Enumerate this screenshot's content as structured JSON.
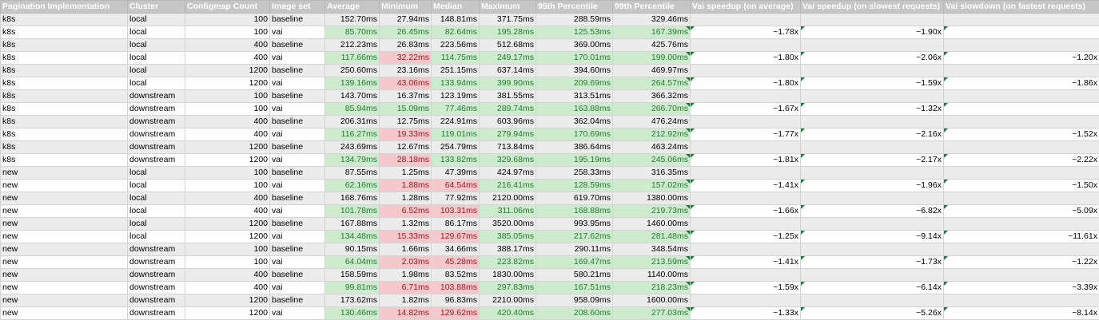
{
  "columns": [
    "Pagination Implementation",
    "Cluster",
    "Configmap Count",
    "Image set",
    "Average",
    "Minimum",
    "Median",
    "Maximum",
    "95th Percentile",
    "99th Percentile",
    "Vai speedup (on average)",
    "Vai speedup (on slowest requests)",
    "Vai slowdown (on fastest requests)"
  ],
  "colors": {
    "header_bg": "#c6c6c6",
    "good_bg": "#cdeccf",
    "good_text": "#267a2c",
    "bad_bg": "#f5c8cc",
    "bad_text": "#a0191f",
    "zebra": "#ececec",
    "flag": "#1e7b34"
  },
  "rows": [
    [
      "k8s",
      "local",
      "100",
      "baseline",
      "152.70ms",
      "27.94ms",
      "148.81ms",
      "371.75ms",
      "288.59ms",
      "329.46ms",
      "",
      "",
      ""
    ],
    [
      "k8s",
      "local",
      "100",
      "vai",
      "85.70ms",
      "26.45ms",
      "82.64ms",
      "195.28ms",
      "125.53ms",
      "167.39ms",
      "~1.78x",
      "~1.90x",
      ""
    ],
    [
      "k8s",
      "local",
      "400",
      "baseline",
      "212.23ms",
      "26.83ms",
      "223.56ms",
      "512.68ms",
      "369.00ms",
      "425.76ms",
      "",
      "",
      ""
    ],
    [
      "k8s",
      "local",
      "400",
      "vai",
      "117.66ms",
      "32.22ms",
      "114.75ms",
      "249.17ms",
      "170.01ms",
      "199.00ms",
      "~1.80x",
      "~2.06x",
      "~1.20x"
    ],
    [
      "k8s",
      "local",
      "1200",
      "baseline",
      "250.60ms",
      "23.16ms",
      "251.15ms",
      "637.14ms",
      "394.60ms",
      "469.97ms",
      "",
      "",
      ""
    ],
    [
      "k8s",
      "local",
      "1200",
      "vai",
      "139.16ms",
      "43.06ms",
      "133.94ms",
      "399.90ms",
      "209.69ms",
      "264.57ms",
      "~1.80x",
      "~1.59x",
      "~1.86x"
    ],
    [
      "k8s",
      "downstream",
      "100",
      "baseline",
      "143.70ms",
      "16.37ms",
      "123.19ms",
      "381.55ms",
      "313.51ms",
      "366.32ms",
      "",
      "",
      ""
    ],
    [
      "k8s",
      "downstream",
      "100",
      "vai",
      "85.94ms",
      "15.09ms",
      "77.46ms",
      "289.74ms",
      "163.88ms",
      "266.70ms",
      "~1.67x",
      "~1.32x",
      ""
    ],
    [
      "k8s",
      "downstream",
      "400",
      "baseline",
      "206.31ms",
      "12.75ms",
      "224.91ms",
      "603.96ms",
      "362.04ms",
      "476.24ms",
      "",
      "",
      ""
    ],
    [
      "k8s",
      "downstream",
      "400",
      "vai",
      "116.27ms",
      "19.33ms",
      "119.01ms",
      "279.94ms",
      "170.69ms",
      "212.92ms",
      "~1.77x",
      "~2.16x",
      "~1.52x"
    ],
    [
      "k8s",
      "downstream",
      "1200",
      "baseline",
      "243.69ms",
      "12.67ms",
      "254.79ms",
      "713.84ms",
      "386.64ms",
      "463.24ms",
      "",
      "",
      ""
    ],
    [
      "k8s",
      "downstream",
      "1200",
      "vai",
      "134.79ms",
      "28.18ms",
      "133.82ms",
      "329.68ms",
      "195.19ms",
      "245.06ms",
      "~1.81x",
      "~2.17x",
      "~2.22x"
    ],
    [
      "new",
      "local",
      "100",
      "baseline",
      "87.55ms",
      "1.25ms",
      "47.39ms",
      "424.97ms",
      "258.33ms",
      "316.35ms",
      "",
      "",
      ""
    ],
    [
      "new",
      "local",
      "100",
      "vai",
      "62.16ms",
      "1.88ms",
      "64.54ms",
      "216.41ms",
      "128.59ms",
      "157.02ms",
      "~1.41x",
      "~1.96x",
      "~1.50x"
    ],
    [
      "new",
      "local",
      "400",
      "baseline",
      "168.76ms",
      "1.28ms",
      "77.92ms",
      "2120.00ms",
      "619.70ms",
      "1380.00ms",
      "",
      "",
      ""
    ],
    [
      "new",
      "local",
      "400",
      "vai",
      "101.78ms",
      "6.52ms",
      "103.31ms",
      "311.06ms",
      "168.88ms",
      "219.73ms",
      "~1.66x",
      "~6.82x",
      "~5.09x"
    ],
    [
      "new",
      "local",
      "1200",
      "baseline",
      "167.88ms",
      "1.32ms",
      "86.17ms",
      "3520.00ms",
      "993.95ms",
      "1460.00ms",
      "",
      "",
      ""
    ],
    [
      "new",
      "local",
      "1200",
      "vai",
      "134.48ms",
      "15.33ms",
      "129.67ms",
      "385.05ms",
      "217.62ms",
      "281.48ms",
      "~1.25x",
      "~9.14x",
      "~11.61x"
    ],
    [
      "new",
      "downstream",
      "100",
      "baseline",
      "90.15ms",
      "1.66ms",
      "34.66ms",
      "388.17ms",
      "290.11ms",
      "348.54ms",
      "",
      "",
      ""
    ],
    [
      "new",
      "downstream",
      "100",
      "vai",
      "64.04ms",
      "2.03ms",
      "45.28ms",
      "223.82ms",
      "169.47ms",
      "213.59ms",
      "~1.41x",
      "~1.73x",
      "~1.22x"
    ],
    [
      "new",
      "downstream",
      "400",
      "baseline",
      "158.59ms",
      "1.98ms",
      "83.52ms",
      "1830.00ms",
      "580.21ms",
      "1140.00ms",
      "",
      "",
      ""
    ],
    [
      "new",
      "downstream",
      "400",
      "vai",
      "99.81ms",
      "6.71ms",
      "103.88ms",
      "297.83ms",
      "167.51ms",
      "218.23ms",
      "~1.59x",
      "~6.14x",
      "~3.39x"
    ],
    [
      "new",
      "downstream",
      "1200",
      "baseline",
      "173.62ms",
      "1.82ms",
      "96.83ms",
      "2210.00ms",
      "958.09ms",
      "1600.00ms",
      "",
      "",
      ""
    ],
    [
      "new",
      "downstream",
      "1200",
      "vai",
      "130.46ms",
      "14.82ms",
      "129.62ms",
      "420.40ms",
      "208.60ms",
      "277.03ms",
      "~1.33x",
      "~5.26x",
      "~8.14x"
    ]
  ]
}
